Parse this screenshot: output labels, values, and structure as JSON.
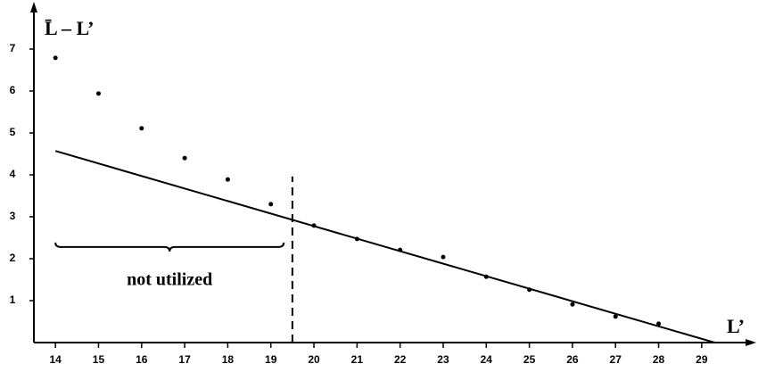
{
  "chart_data": {
    "type": "scatter",
    "x_label": "L’",
    "y_label": "L̄ – L’",
    "x": [
      14,
      15,
      16,
      17,
      18,
      19,
      20,
      21,
      22,
      23,
      24,
      25,
      26,
      27,
      28
    ],
    "values": [
      6.79,
      5.94,
      5.11,
      4.4,
      3.89,
      3.3,
      2.79,
      2.47,
      2.21,
      2.04,
      1.57,
      1.26,
      0.91,
      0.62,
      0.45
    ],
    "color": "#000000",
    "fit_line": {
      "x": [
        14,
        29.3
      ],
      "y": [
        4.57,
        0
      ]
    },
    "vline": {
      "x": 19.5,
      "y": [
        0,
        3.96
      ]
    },
    "brace": {
      "x": [
        14,
        19.3
      ],
      "y": 2.28,
      "label": "not utilized"
    },
    "xlim": [
      13.5,
      30.1
    ],
    "ylim": [
      0,
      8
    ],
    "xticks": [
      14,
      15,
      16,
      17,
      18,
      19,
      20,
      21,
      22,
      23,
      24,
      25,
      26,
      27,
      28,
      29
    ],
    "yticks": [
      1,
      2,
      3,
      4,
      5,
      6,
      7
    ],
    "grid": false
  }
}
